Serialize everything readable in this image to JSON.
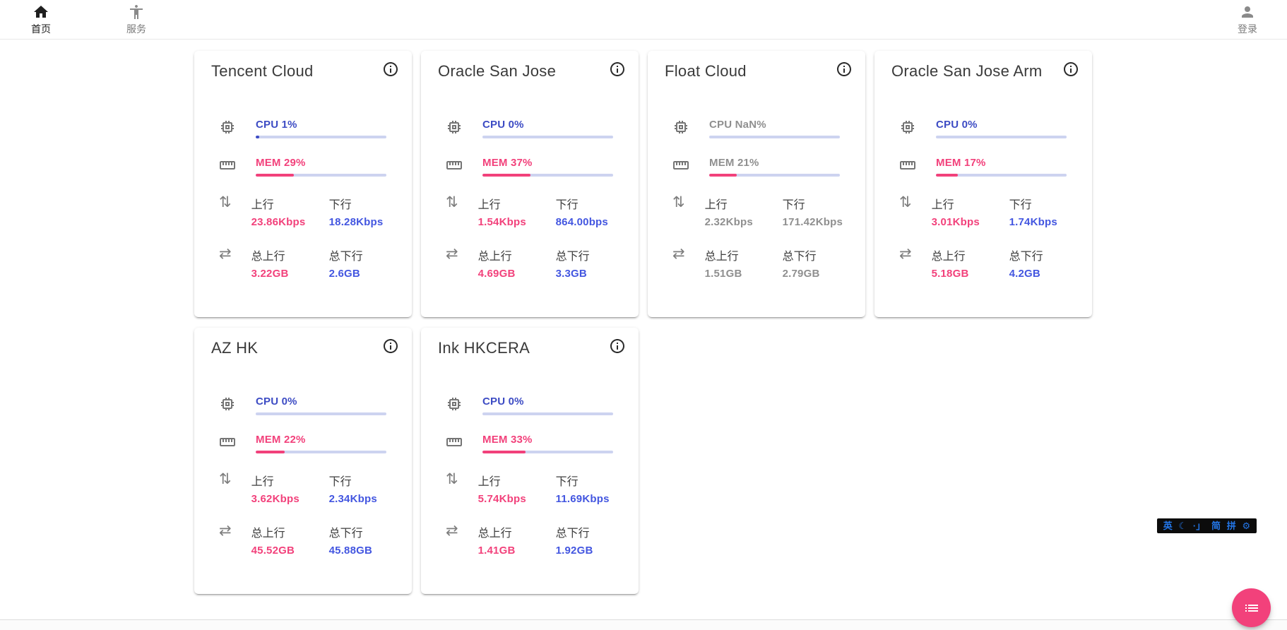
{
  "nav": {
    "home": {
      "label": "首页"
    },
    "services": {
      "label": "服务"
    },
    "login": {
      "label": "登录"
    }
  },
  "labels": {
    "up": "上行",
    "down": "下行",
    "total_up": "总上行",
    "total_down": "总下行"
  },
  "colors": {
    "accent_blue": "#3d4cc4",
    "accent_pink": "#f2417b",
    "bar_track": "#cdd3f0",
    "offline_gray": "#8f8f8f"
  },
  "servers": [
    {
      "name": "Tencent Cloud",
      "cpu_label": "CPU 1%",
      "cpu_pct": 1,
      "mem_label": "MEM 29%",
      "mem_pct": 29,
      "up": "23.86Kbps",
      "down": "18.28Kbps",
      "total_up": "3.22GB",
      "total_down": "2.6GB",
      "offline": false
    },
    {
      "name": "Oracle San Jose",
      "cpu_label": "CPU 0%",
      "cpu_pct": 0,
      "mem_label": "MEM 37%",
      "mem_pct": 37,
      "up": "1.54Kbps",
      "down": "864.00bps",
      "total_up": "4.69GB",
      "total_down": "3.3GB",
      "offline": false
    },
    {
      "name": "Float Cloud",
      "cpu_label": "CPU NaN%",
      "cpu_pct": 0,
      "mem_label": "MEM 21%",
      "mem_pct": 21,
      "up": "2.32Kbps",
      "down": "171.42Kbps",
      "total_up": "1.51GB",
      "total_down": "2.79GB",
      "offline": true
    },
    {
      "name": "Oracle San Jose Arm",
      "cpu_label": "CPU 0%",
      "cpu_pct": 0,
      "mem_label": "MEM 17%",
      "mem_pct": 17,
      "up": "3.01Kbps",
      "down": "1.74Kbps",
      "total_up": "5.18GB",
      "total_down": "4.2GB",
      "offline": false
    },
    {
      "name": "AZ HK",
      "cpu_label": "CPU 0%",
      "cpu_pct": 0,
      "mem_label": "MEM 22%",
      "mem_pct": 22,
      "up": "3.62Kbps",
      "down": "2.34Kbps",
      "total_up": "45.52GB",
      "total_down": "45.88GB",
      "offline": false
    },
    {
      "name": "Ink HKCERA",
      "cpu_label": "CPU 0%",
      "cpu_pct": 0,
      "mem_label": "MEM 33%",
      "mem_pct": 33,
      "up": "5.74Kbps",
      "down": "11.69Kbps",
      "total_up": "1.41GB",
      "total_down": "1.92GB",
      "offline": false
    }
  ],
  "ime": {
    "items": [
      "英",
      "☾",
      "·」",
      "简",
      "拼",
      "⚙"
    ]
  }
}
